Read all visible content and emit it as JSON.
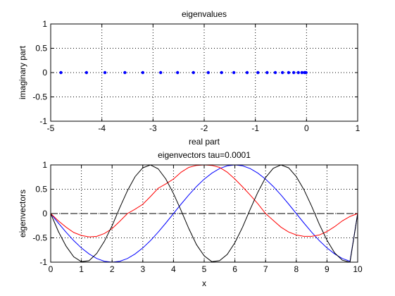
{
  "chart_data": [
    {
      "type": "scatter",
      "title": "eigenvalues",
      "xlabel": "real part",
      "ylabel": "imaginary part",
      "xlim": [
        -5,
        1
      ],
      "ylim": [
        -1,
        1
      ],
      "xticks": [
        -5,
        -4,
        -3,
        -2,
        -1,
        0,
        1
      ],
      "yticks": [
        -1,
        -0.5,
        0,
        0.5,
        1
      ],
      "grid": true,
      "marker_color": "#0000ff",
      "series": [
        {
          "x": [
            -4.8,
            -4.3,
            -3.94,
            -3.55,
            -3.2,
            -2.85,
            -2.52,
            -2.21,
            -1.92,
            -1.66,
            -1.42,
            -1.16,
            -0.95,
            -0.77,
            -0.61,
            -0.47,
            -0.35,
            -0.25,
            -0.16,
            -0.09,
            -0.04,
            -0.01
          ],
          "y": [
            0,
            0,
            0,
            0,
            0,
            0,
            0,
            0,
            0,
            0,
            0,
            0,
            0,
            0,
            0,
            0,
            0,
            0,
            0,
            0,
            0,
            0
          ]
        }
      ]
    },
    {
      "type": "line",
      "title": "eigenvectors tau=0.0001",
      "xlabel": "x",
      "ylabel": "eigenvectors",
      "xlim": [
        0,
        10
      ],
      "ylim": [
        -1,
        1
      ],
      "xticks": [
        0,
        1,
        2,
        3,
        4,
        5,
        6,
        7,
        8,
        9,
        10
      ],
      "yticks": [
        -1,
        -0.5,
        0,
        0.5,
        1
      ],
      "grid": true,
      "x": [
        0,
        0.25,
        0.5,
        0.75,
        1,
        1.25,
        1.5,
        1.75,
        2,
        2.25,
        2.5,
        2.75,
        3,
        3.25,
        3.5,
        3.75,
        4,
        4.25,
        4.5,
        4.75,
        5,
        5.25,
        5.5,
        5.75,
        6,
        6.25,
        6.5,
        6.75,
        7,
        7.25,
        7.5,
        7.75,
        8,
        8.25,
        8.5,
        8.75,
        9,
        9.25,
        9.5,
        9.75,
        10
      ],
      "series": [
        {
          "color": "#000000",
          "style": "dashed",
          "values": [
            0,
            0,
            0,
            0,
            0,
            0,
            0,
            0,
            0,
            0,
            0,
            0,
            0,
            0,
            0,
            0,
            0,
            0,
            0,
            0,
            0,
            0,
            0,
            0,
            0,
            0,
            0,
            0,
            0,
            0,
            0,
            0,
            0,
            0,
            0,
            0,
            0,
            0,
            0,
            0,
            0
          ]
        },
        {
          "color": "#0000ff",
          "style": "solid",
          "values": [
            0,
            -0.195,
            -0.383,
            -0.556,
            -0.707,
            -0.831,
            -0.924,
            -0.981,
            -1,
            -0.981,
            -0.924,
            -0.831,
            -0.707,
            -0.556,
            -0.383,
            -0.195,
            0,
            0.195,
            0.383,
            0.556,
            0.707,
            0.831,
            0.924,
            0.981,
            1,
            0.981,
            0.924,
            0.831,
            0.707,
            0.556,
            0.383,
            0.195,
            0,
            -0.195,
            -0.383,
            -0.556,
            -0.707,
            -0.831,
            -0.924,
            -0.981,
            0
          ]
        },
        {
          "color": "#ff0000",
          "style": "solid",
          "values": [
            0,
            -0.15,
            -0.28,
            -0.39,
            -0.45,
            -0.48,
            -0.47,
            -0.41,
            -0.31,
            -0.16,
            0,
            0.09,
            0.19,
            0.35,
            0.52,
            0.61,
            0.71,
            0.85,
            0.95,
            0.99,
            1,
            0.99,
            0.95,
            0.85,
            0.71,
            0.55,
            0.38,
            0.2,
            0,
            -0.14,
            -0.28,
            -0.38,
            -0.44,
            -0.47,
            -0.47,
            -0.44,
            -0.37,
            -0.27,
            -0.15,
            -0.06,
            0
          ]
        },
        {
          "color": "#000000",
          "style": "solid",
          "values": [
            0,
            -0.37,
            -0.67,
            -0.89,
            -0.99,
            -0.97,
            -0.82,
            -0.57,
            -0.25,
            0.12,
            0.47,
            0.76,
            0.94,
            1,
            0.92,
            0.71,
            0.41,
            0.06,
            -0.31,
            -0.64,
            -0.87,
            -0.99,
            -0.97,
            -0.84,
            -0.6,
            -0.28,
            0.09,
            0.44,
            0.74,
            0.93,
            1,
            0.94,
            0.76,
            0.49,
            0.15,
            -0.22,
            -0.55,
            -0.81,
            -0.96,
            -1,
            0
          ]
        }
      ]
    }
  ]
}
